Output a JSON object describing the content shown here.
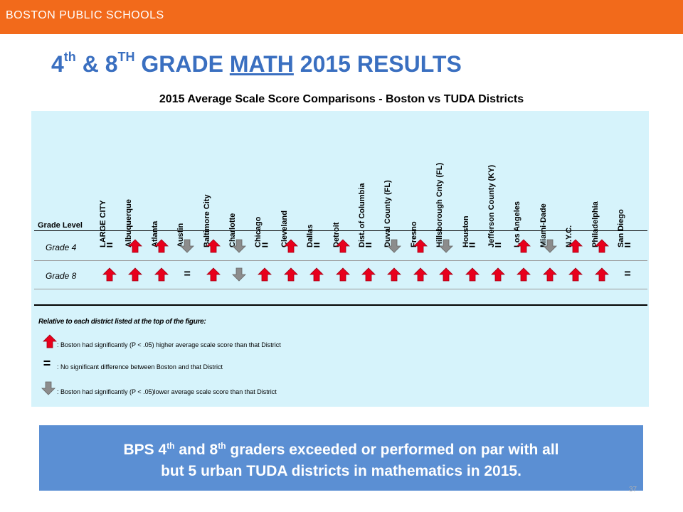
{
  "header": {
    "org": "BOSTON PUBLIC SCHOOLS"
  },
  "title": {
    "part1": "4",
    "sup1": "th",
    "part2": " & 8",
    "sup2": "TH",
    "part3": " GRADE ",
    "underlined": "MATH",
    "part4": " 2015 RESULTS"
  },
  "chart_data": {
    "type": "table",
    "title": "2015 Average Scale Score Comparisons - Boston vs TUDA Districts",
    "row_header": "Grade Level",
    "districts": [
      "LARGE CITY",
      "Albuquerque",
      "Atlanta",
      "Austin",
      "Baltimore City",
      "Charlotte",
      "Chicago",
      "Cleveland",
      "Dallas",
      "Detroit",
      "Dist. of Columbia",
      "Duval County (FL)",
      "Fresno",
      "Hillsborough Cnty (FL)",
      "Houston",
      "Jefferson County (KY)",
      "Los Angeles",
      "Miami-Dade",
      "N.Y.C.",
      "Philadelphia",
      "San Diego"
    ],
    "rows": [
      {
        "label": "Grade 4",
        "values": [
          "eq",
          "higher",
          "higher",
          "lower",
          "higher",
          "lower",
          "eq",
          "higher",
          "eq",
          "higher",
          "eq",
          "lower",
          "higher",
          "lower",
          "eq",
          "eq",
          "higher",
          "lower",
          "higher",
          "higher",
          "eq"
        ]
      },
      {
        "label": "Grade 8",
        "values": [
          "higher",
          "higher",
          "higher",
          "eq",
          "higher",
          "lower",
          "higher",
          "higher",
          "higher",
          "higher",
          "higher",
          "higher",
          "higher",
          "higher",
          "higher",
          "higher",
          "higher",
          "higher",
          "higher",
          "higher",
          "eq"
        ]
      }
    ],
    "symbols": {
      "eq_text": "="
    },
    "colors": {
      "higher": "#e8001c",
      "lower": "#8c8c8c",
      "panel": "#d6f3fb"
    }
  },
  "legend": {
    "heading": "Relative to each district listed at the top of the figure:",
    "higher": ": Boston had significantly (P < .05) higher average scale score than that District",
    "eq": ": No significant difference between Boston and that District",
    "lower": ": Boston had significantly (P < .05)lower average scale score than that District"
  },
  "callout": {
    "a": "BPS 4",
    "sup_a": "th",
    "b": " and 8",
    "sup_b": "th",
    "c": " graders exceeded or performed on par with all",
    "line2": "but 5 urban TUDA districts in mathematics in 2015."
  },
  "page": {
    "number": "37"
  }
}
